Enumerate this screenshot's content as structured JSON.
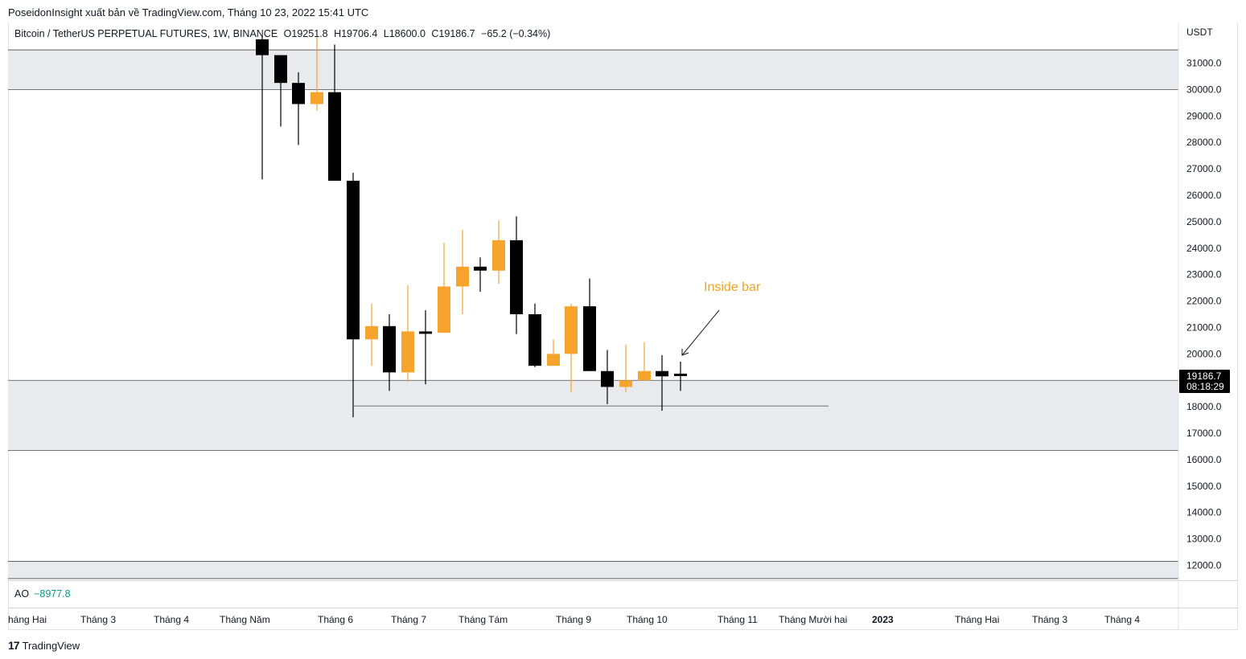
{
  "header": {
    "publisher_line": "PoseidonInsight xuất bản về TradingView.com, Tháng 10 23, 2022 15:41 UTC"
  },
  "legend": {
    "symbol": "Bitcoin / TetherUS PERPETUAL FUTURES, 1W, BINANCE",
    "open": "O19251.8",
    "high": "H19706.4",
    "low": "L18600.0",
    "close": "C19186.7",
    "change": "−65.2 (−0.34%)"
  },
  "price_axis": {
    "currency": "USDT",
    "last_price": "19186.7",
    "countdown": "08:18:29"
  },
  "indicator": {
    "name": "AO",
    "value": "−8977.8"
  },
  "annotation": {
    "text": "Inside bar"
  },
  "footer": {
    "brand": "TradingView"
  },
  "colors": {
    "bull": "#f7a42e",
    "bear": "#000000",
    "zone": "#e9eaee",
    "annotation": "#f2a31f",
    "ao_value": "#089981",
    "last_price_bg": "#000000"
  },
  "chart_data": {
    "type": "candlestick",
    "title": "Bitcoin / TetherUS PERPETUAL FUTURES, 1W, BINANCE",
    "y_unit": "USDT",
    "ylim": [
      11500,
      32000
    ],
    "y_ticks": [
      "31000.0",
      "30000.0",
      "29000.0",
      "28000.0",
      "27000.0",
      "26000.0",
      "25000.0",
      "24000.0",
      "23000.0",
      "22000.0",
      "21000.0",
      "20000.0",
      "18000.0",
      "17000.0",
      "16000.0",
      "15000.0",
      "14000.0",
      "13000.0",
      "12000.0"
    ],
    "x_ticks": [
      {
        "label": "háng Hai",
        "bold": false
      },
      {
        "label": "Tháng 3",
        "bold": false
      },
      {
        "label": "Tháng 4",
        "bold": false
      },
      {
        "label": "Tháng Năm",
        "bold": false
      },
      {
        "label": "Tháng 6",
        "bold": false
      },
      {
        "label": "Tháng 7",
        "bold": false
      },
      {
        "label": "Tháng Tám",
        "bold": false
      },
      {
        "label": "Tháng 9",
        "bold": false
      },
      {
        "label": "Tháng 10",
        "bold": false
      },
      {
        "label": "Tháng 11",
        "bold": false
      },
      {
        "label": "Tháng Mười hai",
        "bold": false
      },
      {
        "label": "2023",
        "bold": true
      },
      {
        "label": "Tháng Hai",
        "bold": false
      },
      {
        "label": "Tháng 3",
        "bold": false
      },
      {
        "label": "Tháng 4",
        "bold": false
      }
    ],
    "candles": [
      {
        "o": 31900,
        "h": 32000,
        "l": 26600,
        "c": 31300
      },
      {
        "o": 31300,
        "h": 31300,
        "l": 28600,
        "c": 30250
      },
      {
        "o": 30250,
        "h": 30650,
        "l": 27900,
        "c": 29450
      },
      {
        "o": 29450,
        "h": 32000,
        "l": 29200,
        "c": 29900
      },
      {
        "o": 29900,
        "h": 31700,
        "l": 26550,
        "c": 26550
      },
      {
        "o": 26550,
        "h": 26850,
        "l": 17600,
        "c": 20550
      },
      {
        "o": 20550,
        "h": 21900,
        "l": 19550,
        "c": 21050
      },
      {
        "o": 21050,
        "h": 21500,
        "l": 18600,
        "c": 19300
      },
      {
        "o": 19300,
        "h": 22600,
        "l": 18950,
        "c": 20850
      },
      {
        "o": 20850,
        "h": 21650,
        "l": 18850,
        "c": 20800
      },
      {
        "o": 20800,
        "h": 24200,
        "l": 20800,
        "c": 22550
      },
      {
        "o": 22550,
        "h": 24700,
        "l": 21500,
        "c": 23300
      },
      {
        "o": 23300,
        "h": 23650,
        "l": 22350,
        "c": 23150
      },
      {
        "o": 23150,
        "h": 25050,
        "l": 22650,
        "c": 24300
      },
      {
        "o": 24300,
        "h": 25200,
        "l": 20750,
        "c": 21500
      },
      {
        "o": 21500,
        "h": 21900,
        "l": 19500,
        "c": 19550
      },
      {
        "o": 19550,
        "h": 20550,
        "l": 19550,
        "c": 20000
      },
      {
        "o": 20000,
        "h": 21900,
        "l": 18550,
        "c": 21800
      },
      {
        "o": 21800,
        "h": 22850,
        "l": 19350,
        "c": 19350
      },
      {
        "o": 19350,
        "h": 20150,
        "l": 18100,
        "c": 18750
      },
      {
        "o": 18750,
        "h": 20350,
        "l": 18550,
        "c": 19000
      },
      {
        "o": 19000,
        "h": 20450,
        "l": 19000,
        "c": 19350
      },
      {
        "o": 19350,
        "h": 19950,
        "l": 17850,
        "c": 19150
      },
      {
        "o": 19251.8,
        "h": 19706.4,
        "l": 18600,
        "c": 19186.7
      }
    ],
    "zones": [
      {
        "from": 30000,
        "to": 31500
      },
      {
        "from": 16350,
        "to": 19000
      },
      {
        "from": 11500,
        "to": 12150
      }
    ],
    "support_line": 18000
  }
}
